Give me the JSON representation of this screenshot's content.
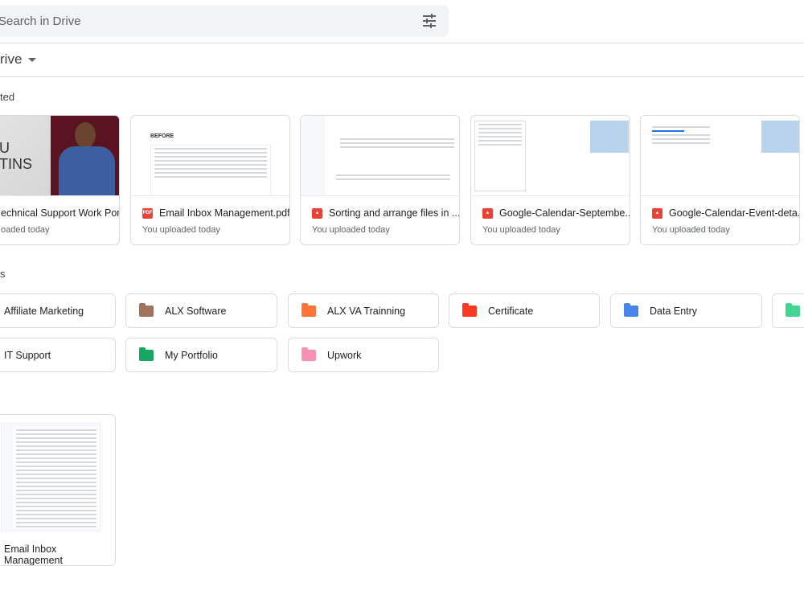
{
  "search": {
    "placeholder": "Search in Drive",
    "icon": "tune-icon"
  },
  "breadcrumb": {
    "label": "rive"
  },
  "sections": {
    "suggested": "ted",
    "folders": "s"
  },
  "suggested_files": [
    {
      "name": "echnical Support Work Por...",
      "sub": "oaded today",
      "thumb_text_1": "U",
      "thumb_text_2": "TINS"
    },
    {
      "name": "Email Inbox Management.pdf",
      "sub": "You uploaded today",
      "icon": "pdf-icon",
      "icon_text": "PDF",
      "thumb_text": "BEFORE"
    },
    {
      "name": "Sorting and arrange files in ...",
      "sub": "You uploaded today",
      "icon": "image-icon"
    },
    {
      "name": "Google-Calendar-Septembe...",
      "sub": "You uploaded today",
      "icon": "image-icon"
    },
    {
      "name": "Google-Calendar-Event-deta...",
      "sub": "You uploaded today",
      "icon": "image-icon"
    }
  ],
  "folders": [
    {
      "name": "Affiliate Marketing",
      "color": ""
    },
    {
      "name": "ALX Software",
      "color": "#a1735a"
    },
    {
      "name": "ALX VA Trainning",
      "color": "#ff7537"
    },
    {
      "name": "Certificate",
      "color": "#f83a22"
    },
    {
      "name": "Data Entry",
      "color": "#4986e7",
      "shared": true
    },
    {
      "name": "",
      "color": "#42d692"
    },
    {
      "name": "IT Support",
      "color": ""
    },
    {
      "name": "My Portfolio",
      "color": "#16a765"
    },
    {
      "name": "Upwork",
      "color": "#f691b2"
    }
  ],
  "files": [
    {
      "name": "Email Inbox Management"
    }
  ]
}
